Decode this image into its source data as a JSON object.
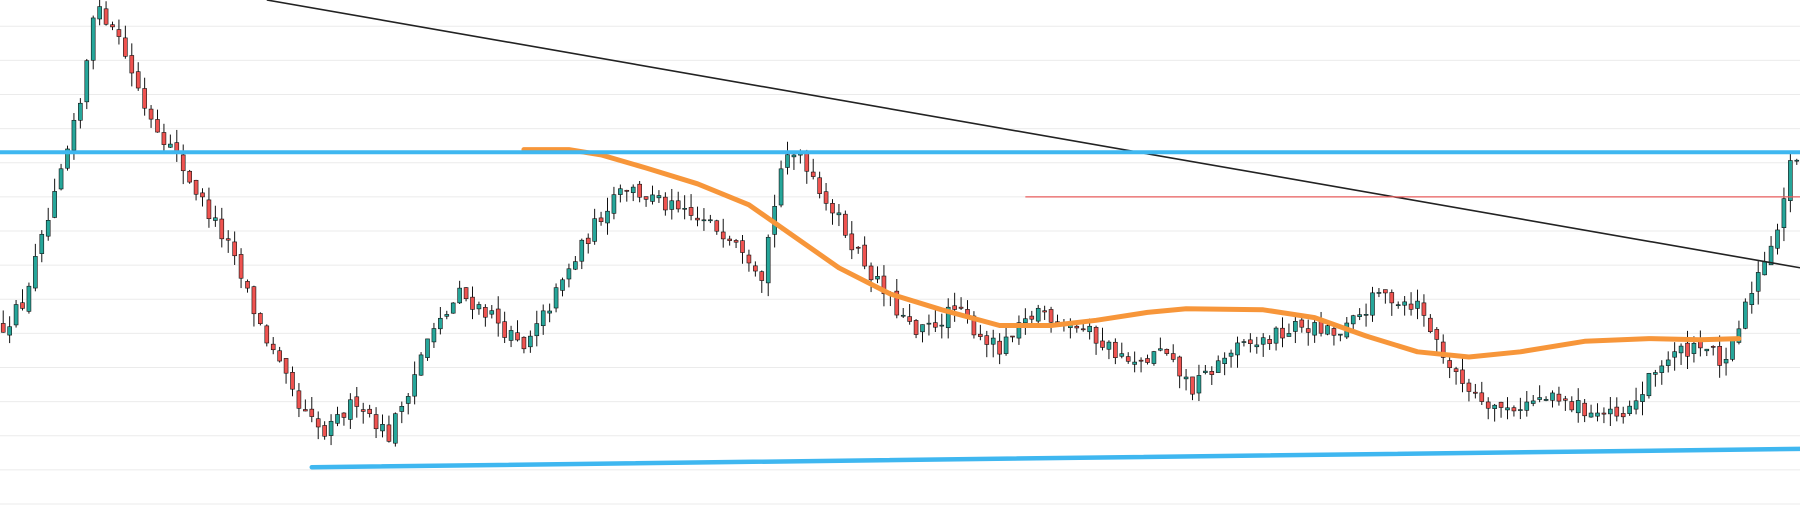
{
  "chart_data": {
    "type": "candlestick",
    "title": "",
    "xlabel": "",
    "ylabel": "",
    "ylim": [
      0,
      100
    ],
    "grid": true,
    "bars": 280,
    "grid_levels": [
      4,
      10.5,
      17,
      23.5,
      30,
      36.5,
      43,
      49.5,
      56,
      62.5,
      69,
      75.5,
      82,
      88.5,
      95
    ],
    "close_path": [
      [
        0,
        38
      ],
      [
        3,
        42
      ],
      [
        8,
        62
      ],
      [
        12,
        80
      ],
      [
        14,
        98
      ],
      [
        17,
        96
      ],
      [
        22,
        80
      ],
      [
        28,
        68
      ],
      [
        35,
        53
      ],
      [
        40,
        38
      ],
      [
        46,
        22
      ],
      [
        50,
        17
      ],
      [
        55,
        24
      ],
      [
        60,
        17
      ],
      [
        66,
        35
      ],
      [
        71,
        44
      ],
      [
        76,
        40
      ],
      [
        81,
        33
      ],
      [
        86,
        44
      ],
      [
        91,
        55
      ],
      [
        96,
        65
      ],
      [
        101,
        62
      ],
      [
        106,
        59
      ],
      [
        114,
        55
      ],
      [
        118,
        48
      ],
      [
        121,
        68
      ],
      [
        124,
        71
      ],
      [
        129,
        60
      ],
      [
        136,
        46
      ],
      [
        142,
        36
      ],
      [
        148,
        41
      ],
      [
        155,
        33
      ],
      [
        161,
        41
      ],
      [
        167,
        38
      ],
      [
        172,
        34
      ],
      [
        176,
        30
      ],
      [
        180,
        33
      ],
      [
        185,
        26
      ],
      [
        191,
        33
      ],
      [
        196,
        35
      ],
      [
        202,
        38
      ],
      [
        208,
        36
      ],
      [
        214,
        44
      ],
      [
        220,
        42
      ],
      [
        226,
        28
      ],
      [
        233,
        22
      ],
      [
        240,
        24
      ],
      [
        246,
        22
      ],
      [
        252,
        20
      ],
      [
        258,
        31
      ],
      [
        264,
        35
      ],
      [
        268,
        30
      ],
      [
        272,
        45
      ],
      [
        276,
        57
      ],
      [
        278,
        68
      ],
      [
        279,
        70
      ]
    ],
    "support_line": {
      "from": [
        48,
        11
      ],
      "to": [
        279,
        14.5
      ],
      "color": "#3fb7f0"
    },
    "resistance_level": {
      "y": 71,
      "color": "#3fb7f0"
    },
    "downtrend_line": {
      "from": [
        41,
        100
      ],
      "to": [
        279,
        49
      ],
      "color": "#222222"
    },
    "red_level": {
      "from": [
        159,
        62.5
      ],
      "to": [
        279,
        62.5
      ],
      "color": "#e85c5c"
    },
    "moving_average": {
      "color": "#f7963a",
      "points": [
        [
          81,
          71.5
        ],
        [
          88,
          71.5
        ],
        [
          93,
          70.5
        ],
        [
          100,
          68
        ],
        [
          108,
          65
        ],
        [
          116,
          61
        ],
        [
          123,
          55
        ],
        [
          130,
          49
        ],
        [
          138,
          44
        ],
        [
          146,
          41
        ],
        [
          155,
          38
        ],
        [
          163,
          38
        ],
        [
          170,
          39
        ],
        [
          178,
          40.5
        ],
        [
          184,
          41.2
        ],
        [
          196,
          41
        ],
        [
          204,
          39.5
        ],
        [
          212,
          36
        ],
        [
          220,
          33
        ],
        [
          228,
          32
        ],
        [
          236,
          33
        ],
        [
          246,
          35
        ],
        [
          256,
          35.5
        ],
        [
          264,
          35.3
        ],
        [
          270,
          35.5
        ]
      ]
    },
    "colors": {
      "up": "#26a69a",
      "down": "#ef5350",
      "wick": "#111111",
      "grid": "#ebebeb"
    }
  }
}
